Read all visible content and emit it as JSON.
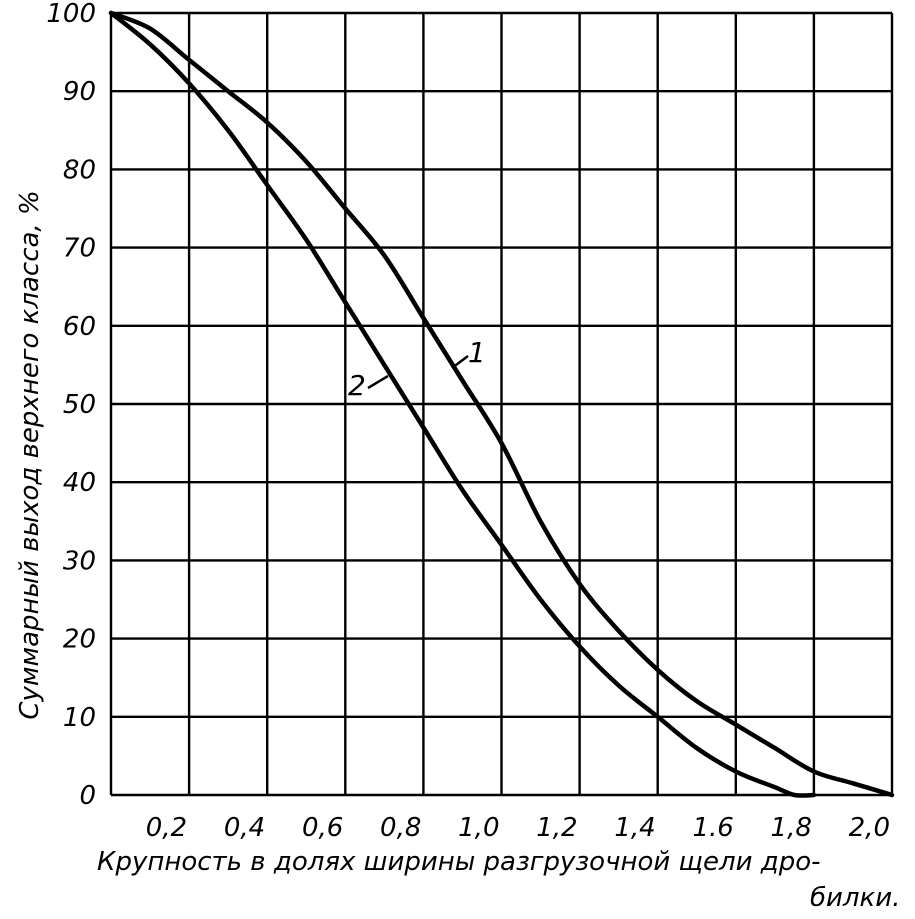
{
  "chart_data": {
    "type": "line",
    "xlabel_line1": "Крупность в долях ширины разгрузочной щели дро-",
    "xlabel_line2": "билки.",
    "ylabel": "Суммарный выход верхнего класса, %",
    "xlim": [
      0,
      2.0
    ],
    "ylim": [
      0,
      100
    ],
    "x_tick_labels": [
      "0,2",
      "0,4",
      "0,6",
      "0,8",
      "1,0",
      "1,2",
      "1,4",
      "1.6",
      "1,8",
      "2,0"
    ],
    "y_tick_labels": [
      "0",
      "10",
      "20",
      "30",
      "40",
      "50",
      "60",
      "70",
      "80",
      "90",
      "100"
    ],
    "grid": true,
    "series": [
      {
        "name": "1",
        "x": [
          0,
          0.1,
          0.2,
          0.3,
          0.4,
          0.5,
          0.6,
          0.7,
          0.8,
          0.9,
          1.0,
          1.1,
          1.2,
          1.3,
          1.4,
          1.5,
          1.6,
          1.7,
          1.8,
          1.9,
          2.0
        ],
        "y": [
          100,
          98,
          94,
          90,
          86,
          81,
          75,
          69,
          61,
          53,
          45,
          35,
          27,
          21,
          16,
          12,
          9,
          6,
          3,
          1.5,
          0
        ]
      },
      {
        "name": "2",
        "x": [
          0,
          0.1,
          0.2,
          0.3,
          0.4,
          0.5,
          0.6,
          0.7,
          0.8,
          0.9,
          1.0,
          1.1,
          1.2,
          1.3,
          1.4,
          1.5,
          1.6,
          1.7,
          1.75,
          1.8
        ],
        "y": [
          100,
          96,
          91,
          85,
          78,
          71,
          63,
          55,
          47,
          39,
          32,
          25,
          19,
          14,
          10,
          6,
          3,
          1,
          0,
          0
        ]
      }
    ]
  }
}
